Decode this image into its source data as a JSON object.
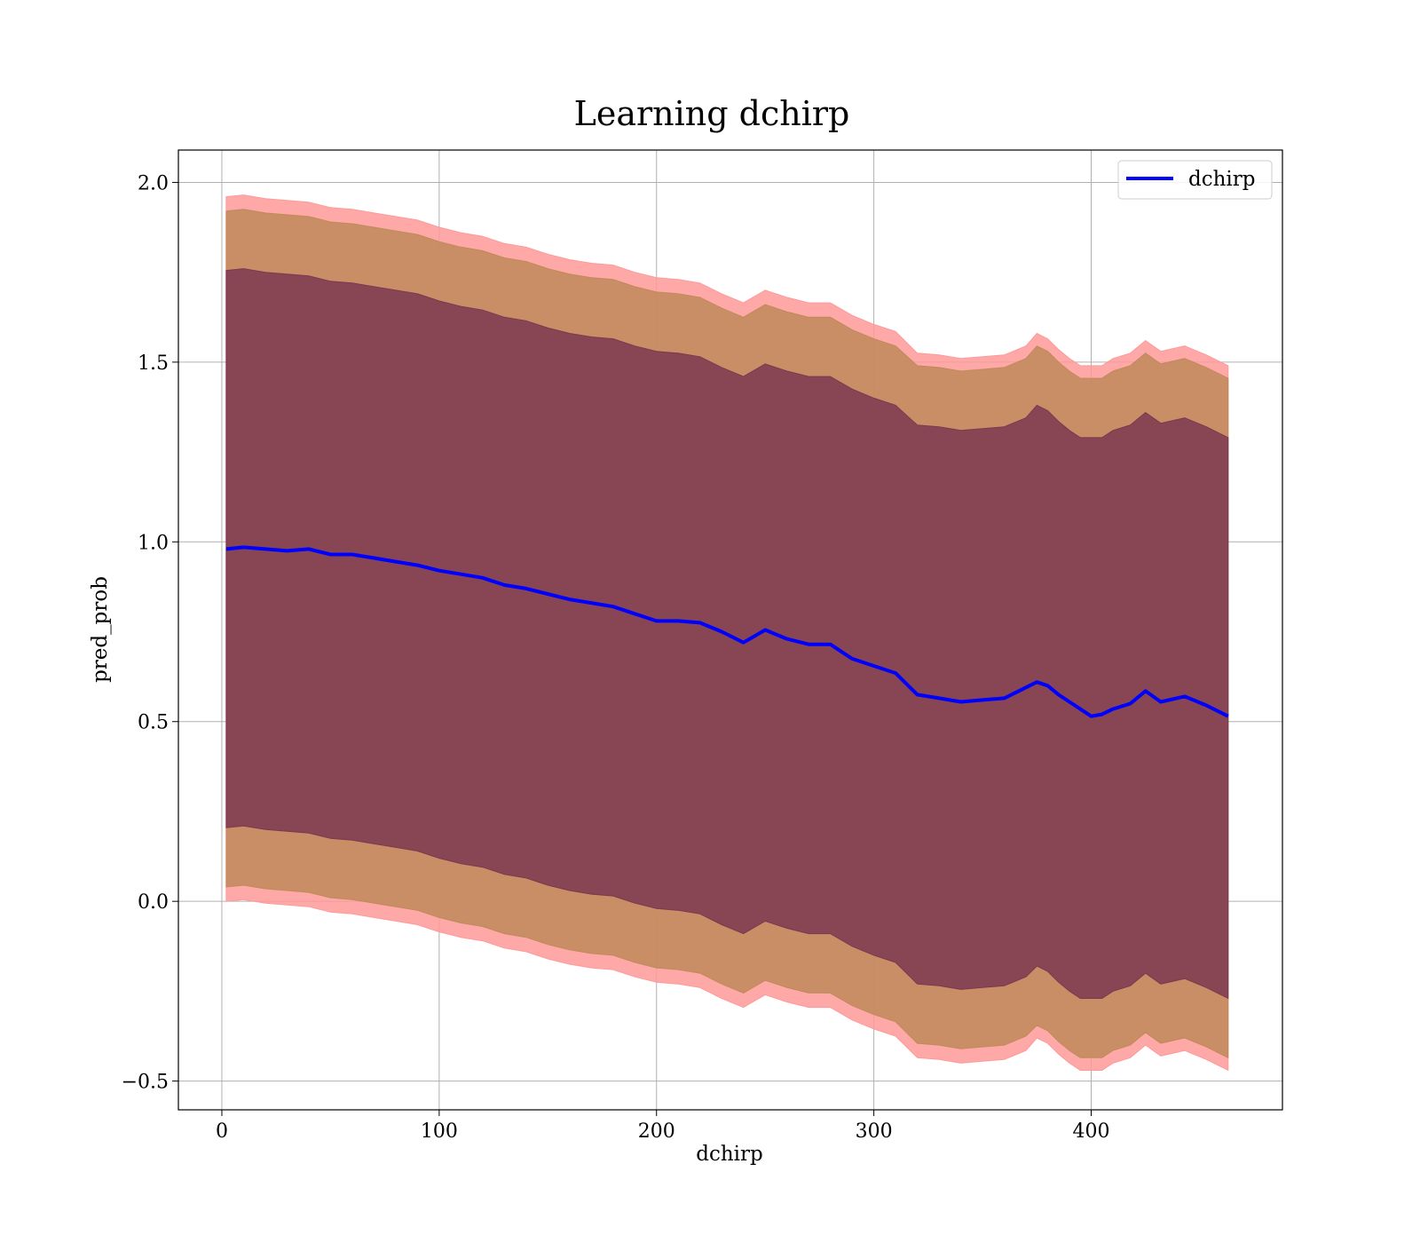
{
  "chart_data": {
    "type": "line",
    "title": "Learning dchirp",
    "xlabel": "dchirp",
    "ylabel": "pred_prob",
    "xlim": [
      -20,
      488
    ],
    "ylim": [
      -0.58,
      2.09
    ],
    "xticks": [
      0,
      100,
      200,
      300,
      400
    ],
    "yticks": [
      -0.5,
      0.0,
      0.5,
      1.0,
      1.5,
      2.0
    ],
    "xtick_labels": [
      "0",
      "100",
      "200",
      "300",
      "400"
    ],
    "ytick_labels": [
      "−0.5",
      "0.0",
      "0.5",
      "1.0",
      "1.5",
      "2.0"
    ],
    "grid": true,
    "legend": {
      "position": "top-right",
      "entries": [
        "dchirp"
      ]
    },
    "series": [
      {
        "name": "dchirp",
        "color": "#0000ff",
        "x": [
          2,
          10,
          20,
          30,
          40,
          50,
          60,
          70,
          80,
          90,
          100,
          110,
          120,
          130,
          140,
          150,
          160,
          170,
          180,
          190,
          200,
          210,
          220,
          230,
          240,
          250,
          260,
          270,
          280,
          290,
          300,
          310,
          320,
          330,
          340,
          350,
          360,
          370,
          375,
          380,
          385,
          390,
          395,
          400,
          405,
          410,
          418,
          425,
          432,
          443,
          453,
          463
        ],
        "y": [
          0.98,
          0.985,
          0.98,
          0.975,
          0.98,
          0.965,
          0.965,
          0.955,
          0.945,
          0.935,
          0.92,
          0.91,
          0.9,
          0.88,
          0.87,
          0.855,
          0.84,
          0.83,
          0.82,
          0.8,
          0.78,
          0.78,
          0.775,
          0.75,
          0.72,
          0.755,
          0.73,
          0.715,
          0.715,
          0.675,
          0.655,
          0.635,
          0.575,
          0.565,
          0.555,
          0.56,
          0.565,
          0.595,
          0.61,
          0.6,
          0.575,
          0.555,
          0.535,
          0.515,
          0.52,
          0.535,
          0.55,
          0.585,
          0.555,
          0.57,
          0.545,
          0.515
        ]
      }
    ],
    "bands": [
      {
        "name": "band-outer",
        "color": "#ff9999",
        "upper": [
          1.96,
          1.965,
          1.955,
          1.95,
          1.945,
          1.93,
          1.925,
          1.915,
          1.905,
          1.895,
          1.875,
          1.86,
          1.85,
          1.83,
          1.82,
          1.8,
          1.785,
          1.775,
          1.77,
          1.75,
          1.735,
          1.73,
          1.72,
          1.69,
          1.665,
          1.7,
          1.68,
          1.665,
          1.665,
          1.63,
          1.605,
          1.585,
          1.525,
          1.52,
          1.51,
          1.515,
          1.52,
          1.545,
          1.58,
          1.565,
          1.535,
          1.51,
          1.49,
          1.49,
          1.49,
          1.51,
          1.525,
          1.56,
          1.53,
          1.545,
          1.52,
          1.49
        ],
        "lower": [
          0.0,
          0.005,
          -0.005,
          -0.01,
          -0.015,
          -0.03,
          -0.035,
          -0.045,
          -0.055,
          -0.065,
          -0.085,
          -0.1,
          -0.11,
          -0.13,
          -0.14,
          -0.16,
          -0.175,
          -0.185,
          -0.19,
          -0.21,
          -0.225,
          -0.23,
          -0.24,
          -0.27,
          -0.295,
          -0.26,
          -0.28,
          -0.295,
          -0.295,
          -0.33,
          -0.355,
          -0.375,
          -0.435,
          -0.44,
          -0.45,
          -0.445,
          -0.44,
          -0.415,
          -0.38,
          -0.395,
          -0.425,
          -0.45,
          -0.47,
          -0.47,
          -0.47,
          -0.45,
          -0.435,
          -0.4,
          -0.43,
          -0.415,
          -0.44,
          -0.47
        ]
      },
      {
        "name": "band-middle",
        "color": "#c08a5a",
        "upper": [
          1.92,
          1.925,
          1.915,
          1.91,
          1.905,
          1.89,
          1.885,
          1.875,
          1.865,
          1.855,
          1.835,
          1.82,
          1.81,
          1.79,
          1.78,
          1.76,
          1.745,
          1.735,
          1.73,
          1.71,
          1.695,
          1.69,
          1.68,
          1.65,
          1.625,
          1.66,
          1.64,
          1.625,
          1.625,
          1.59,
          1.565,
          1.545,
          1.49,
          1.485,
          1.475,
          1.48,
          1.485,
          1.51,
          1.545,
          1.53,
          1.5,
          1.475,
          1.455,
          1.455,
          1.455,
          1.475,
          1.49,
          1.525,
          1.495,
          1.51,
          1.485,
          1.455
        ],
        "lower": [
          0.04,
          0.045,
          0.035,
          0.03,
          0.025,
          0.01,
          0.005,
          -0.005,
          -0.015,
          -0.025,
          -0.045,
          -0.06,
          -0.07,
          -0.09,
          -0.1,
          -0.12,
          -0.135,
          -0.145,
          -0.15,
          -0.17,
          -0.185,
          -0.19,
          -0.2,
          -0.23,
          -0.255,
          -0.22,
          -0.24,
          -0.255,
          -0.255,
          -0.29,
          -0.315,
          -0.335,
          -0.395,
          -0.4,
          -0.41,
          -0.405,
          -0.4,
          -0.375,
          -0.345,
          -0.36,
          -0.39,
          -0.415,
          -0.435,
          -0.435,
          -0.435,
          -0.415,
          -0.4,
          -0.365,
          -0.395,
          -0.38,
          -0.405,
          -0.435
        ]
      },
      {
        "name": "band-inner",
        "color": "#7d3850",
        "upper": [
          1.755,
          1.76,
          1.75,
          1.745,
          1.74,
          1.725,
          1.72,
          1.71,
          1.7,
          1.69,
          1.67,
          1.655,
          1.645,
          1.625,
          1.615,
          1.595,
          1.58,
          1.57,
          1.565,
          1.545,
          1.53,
          1.525,
          1.515,
          1.485,
          1.46,
          1.495,
          1.475,
          1.46,
          1.46,
          1.425,
          1.4,
          1.38,
          1.325,
          1.32,
          1.31,
          1.315,
          1.32,
          1.345,
          1.38,
          1.365,
          1.335,
          1.31,
          1.29,
          1.29,
          1.29,
          1.31,
          1.325,
          1.36,
          1.33,
          1.345,
          1.32,
          1.29
        ],
        "lower": [
          0.205,
          0.21,
          0.2,
          0.195,
          0.19,
          0.175,
          0.17,
          0.16,
          0.15,
          0.14,
          0.12,
          0.105,
          0.095,
          0.075,
          0.065,
          0.045,
          0.03,
          0.02,
          0.015,
          -0.005,
          -0.02,
          -0.025,
          -0.035,
          -0.065,
          -0.09,
          -0.055,
          -0.075,
          -0.09,
          -0.09,
          -0.125,
          -0.15,
          -0.17,
          -0.23,
          -0.235,
          -0.245,
          -0.24,
          -0.235,
          -0.21,
          -0.18,
          -0.195,
          -0.225,
          -0.25,
          -0.27,
          -0.27,
          -0.27,
          -0.25,
          -0.235,
          -0.2,
          -0.23,
          -0.215,
          -0.24,
          -0.27
        ]
      }
    ]
  }
}
